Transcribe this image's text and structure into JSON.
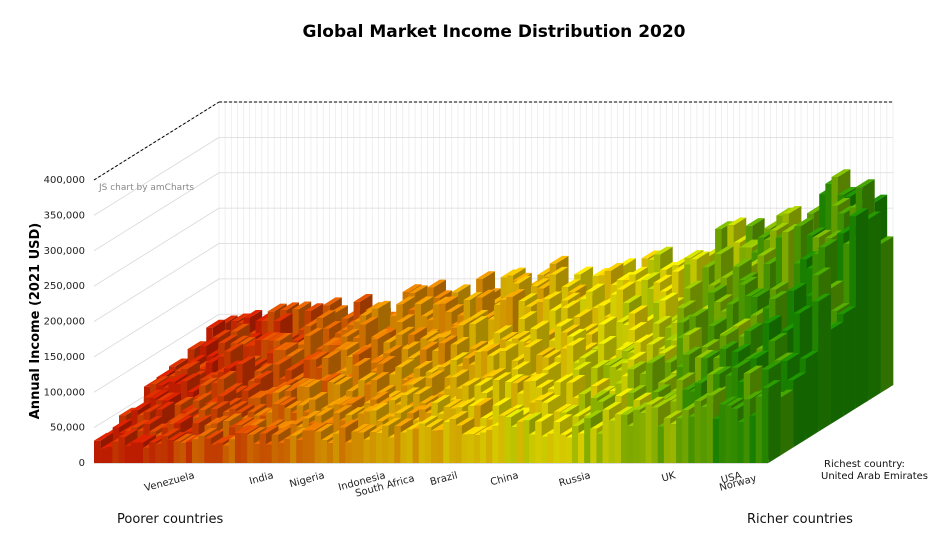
{
  "chart_data": {
    "type": "bar",
    "style": "3d-stacked-columns",
    "title": "Global Market Income Distribution 2020",
    "xlabel": "",
    "ylabel": "Annual Income (2021 USD)",
    "ylim": [
      0,
      400000
    ],
    "yticks": [
      "0",
      "50,000",
      "100,000",
      "150,000",
      "200,000",
      "250,000",
      "300,000",
      "350,000",
      "400,000"
    ],
    "grid": true,
    "credit": "JS chart by amCharts",
    "categories": [
      "Venezuela",
      "India",
      "Nigeria",
      "Indonesia",
      "South Africa",
      "Brazil",
      "China",
      "Russia",
      "UK",
      "USA",
      "Norway"
    ],
    "series": [
      {
        "values": [
          110000,
          120000,
          130000,
          150000,
          160000,
          190000,
          210000,
          190000,
          260000,
          300000,
          330000
        ]
      }
    ],
    "annotations": {
      "richest_label": "Richest country:",
      "richest_country": "United Arab Emirates",
      "left_footer": "Poorer countries",
      "right_footer": "Richer countries"
    },
    "colors": {
      "low": "#cc1f00",
      "mid_orange": "#e08a00",
      "mid_yellow": "#e8e000",
      "high": "#1a8a00"
    }
  }
}
